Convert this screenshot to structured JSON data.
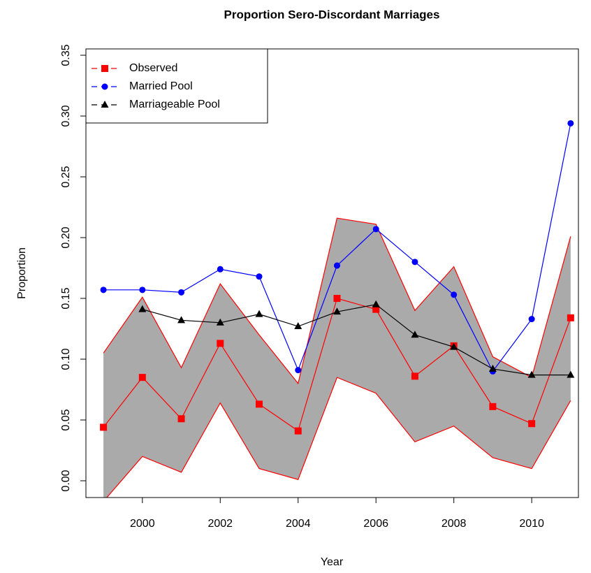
{
  "chart_data": {
    "type": "line",
    "title": "Proportion Sero-Discordant Marriages",
    "x_label": "Year",
    "y_label": "Proportion",
    "x": [
      1999,
      2000,
      2001,
      2002,
      2003,
      2004,
      2005,
      2006,
      2007,
      2008,
      2009,
      2010,
      2011
    ],
    "series": [
      {
        "name": "Observed",
        "color": "#ff0000",
        "marker": "square",
        "values": [
          0.044,
          0.085,
          0.051,
          0.113,
          0.063,
          0.041,
          0.15,
          0.141,
          0.086,
          0.111,
          0.061,
          0.047,
          0.134
        ]
      },
      {
        "name": "Married Pool",
        "color": "#0000ff",
        "marker": "circle",
        "values": [
          0.157,
          0.157,
          0.155,
          0.174,
          0.168,
          0.091,
          0.177,
          0.207,
          0.18,
          0.153,
          0.09,
          0.133,
          0.294
        ]
      },
      {
        "name": "Marriageable Pool",
        "color": "#000000",
        "marker": "triangle",
        "values": [
          null,
          0.141,
          0.132,
          0.13,
          0.137,
          0.127,
          0.139,
          0.145,
          0.12,
          0.11,
          0.092,
          0.087,
          0.087
        ]
      }
    ],
    "band": {
      "color": "#aaaaaa",
      "border": "#ff0000",
      "upper": [
        0.105,
        0.151,
        0.093,
        0.162,
        0.12,
        0.08,
        0.216,
        0.211,
        0.14,
        0.176,
        0.102,
        0.085,
        0.201
      ],
      "lower": [
        -0.017,
        0.02,
        0.007,
        0.064,
        0.01,
        0.001,
        0.085,
        0.072,
        0.032,
        0.045,
        0.019,
        0.01,
        0.066
      ]
    },
    "xlim": [
      1998.55,
      2011.2
    ],
    "ylim": [
      -0.0138,
      0.3552
    ],
    "xticks": [
      2000,
      2002,
      2004,
      2006,
      2008,
      2010
    ],
    "yticks": [
      {
        "value": 0,
        "label": "0.00"
      },
      0.05,
      {
        "value": 0.1,
        "label": "0.10"
      },
      0.15,
      {
        "value": 0.2,
        "label": "0.20"
      },
      0.25,
      {
        "value": 0.3,
        "label": "0.30"
      },
      0.35
    ],
    "legend": "top-left"
  }
}
